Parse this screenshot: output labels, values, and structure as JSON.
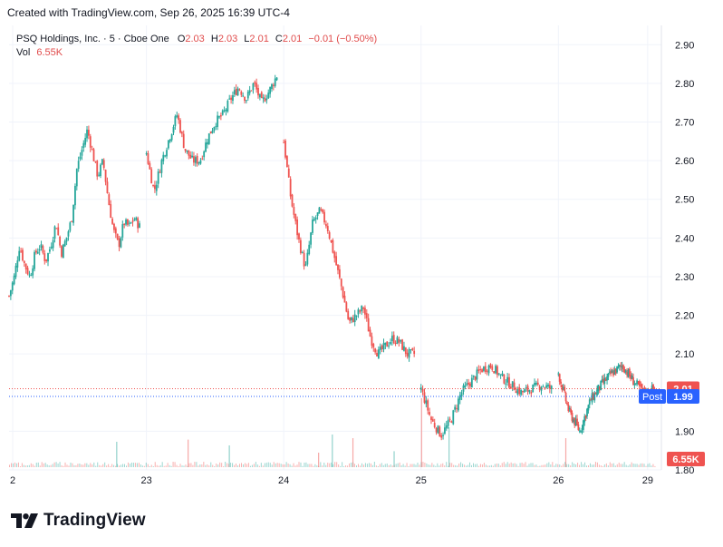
{
  "header": {
    "created_text": "Created with TradingView.com, Sep 26, 2025 16:39 UTC-4"
  },
  "legend": {
    "symbol": "PSQ Holdings, Inc. · 5 · Cboe One",
    "o_label": "O",
    "o_value": "2.03",
    "h_label": "H",
    "h_value": "2.03",
    "l_label": "L",
    "l_value": "2.01",
    "c_label": "C",
    "c_value": "2.01",
    "change": "−0.01 (−0.50%)",
    "vol_label": "Vol",
    "vol_value": "6.55K"
  },
  "brand": {
    "name": "TradingView"
  },
  "colors": {
    "up": "#26a69a",
    "down": "#ef5350",
    "post": "#2962ff",
    "grid": "#f0f3fa",
    "text": "#131722"
  },
  "chart_data": {
    "type": "candlestick",
    "title": "PSQ Holdings, Inc. · 5 · Cboe One",
    "ylim": [
      1.8,
      2.95
    ],
    "y_ticks": [
      "2.90",
      "2.80",
      "2.70",
      "2.60",
      "2.50",
      "2.40",
      "2.30",
      "2.20",
      "2.10",
      "1.90",
      "1.80"
    ],
    "x_ticks": [
      "2",
      "23",
      "24",
      "25",
      "26",
      "29"
    ],
    "x_tick_positions": [
      0,
      23,
      24,
      25,
      26,
      26.65
    ],
    "x_range": [
      22.0,
      26.75
    ],
    "grid": true,
    "price_labels": [
      {
        "label": "",
        "value": "2.01",
        "price": 2.01,
        "color": "#ef5350"
      },
      {
        "label": "Post",
        "value": "1.99",
        "price": 1.99,
        "color": "#2962ff"
      }
    ],
    "volume_label": "6.55K",
    "price_series": [
      {
        "session": "Sep 22",
        "x_start": 22.0,
        "x_end": 22.95,
        "points": [
          2.25,
          2.3,
          2.38,
          2.33,
          2.3,
          2.36,
          2.38,
          2.34,
          2.38,
          2.44,
          2.36,
          2.4,
          2.45,
          2.58,
          2.63,
          2.68,
          2.62,
          2.56,
          2.6,
          2.5,
          2.42,
          2.38,
          2.44,
          2.43,
          2.45,
          2.43
        ]
      },
      {
        "session": "Sep 23",
        "x_start": 23.0,
        "x_end": 23.95,
        "points": [
          2.62,
          2.52,
          2.6,
          2.66,
          2.72,
          2.63,
          2.6,
          2.6,
          2.66,
          2.7,
          2.72,
          2.76,
          2.79,
          2.76,
          2.8,
          2.75,
          2.78,
          2.82
        ]
      },
      {
        "session": "Sep 24",
        "x_start": 24.0,
        "x_end": 24.95,
        "points": [
          2.65,
          2.5,
          2.4,
          2.32,
          2.44,
          2.47,
          2.43,
          2.35,
          2.27,
          2.18,
          2.2,
          2.22,
          2.14,
          2.1,
          2.12,
          2.14,
          2.13,
          2.1,
          2.1
        ]
      },
      {
        "session": "Sep 25",
        "x_start": 25.0,
        "x_end": 25.95,
        "points": [
          2.01,
          1.93,
          1.89,
          1.93,
          2.0,
          2.03,
          2.06,
          2.07,
          2.04,
          2.02,
          2.0,
          2.01,
          2.02,
          2.01
        ]
      },
      {
        "session": "Sep 26",
        "x_start": 26.0,
        "x_end": 26.7,
        "points": [
          2.05,
          1.95,
          1.9,
          1.98,
          2.02,
          2.05,
          2.07,
          2.03,
          2.0,
          2.01
        ]
      }
    ],
    "volume_spikes": [
      {
        "x": 22.78,
        "value": 0.35
      },
      {
        "x": 23.3,
        "value": 0.38
      },
      {
        "x": 23.6,
        "value": 0.3
      },
      {
        "x": 24.25,
        "value": 0.2
      },
      {
        "x": 24.35,
        "value": 0.45
      },
      {
        "x": 24.5,
        "value": 0.4
      },
      {
        "x": 24.8,
        "value": 0.22
      },
      {
        "x": 25.0,
        "value": 0.95
      },
      {
        "x": 25.2,
        "value": 0.55
      },
      {
        "x": 26.05,
        "value": 0.4
      }
    ]
  }
}
